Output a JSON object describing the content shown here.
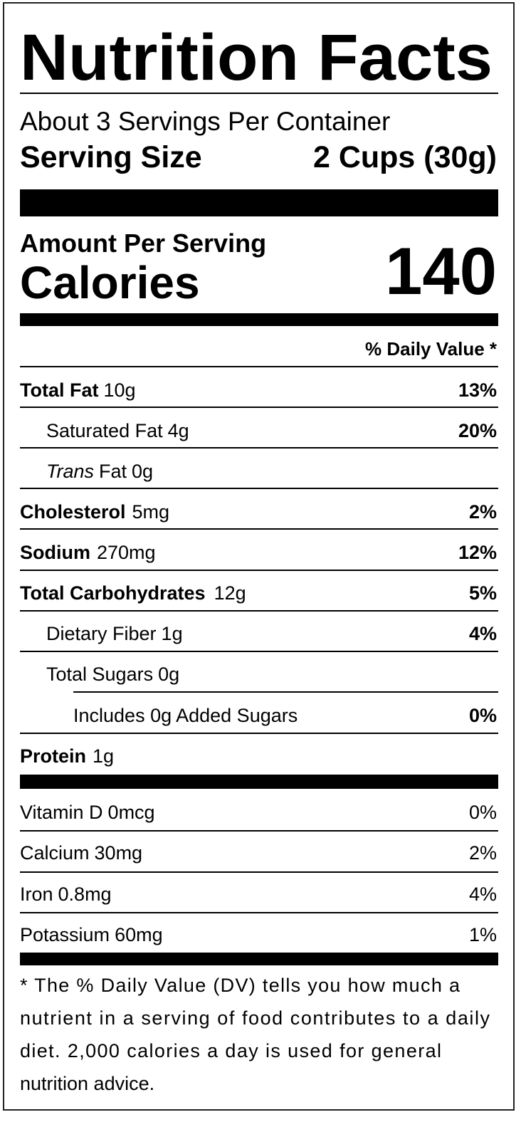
{
  "header": {
    "title": "Nutrition Facts",
    "servings": "About 3 Servings Per Container",
    "serving_size_label": "Serving Size",
    "serving_size": "2 Cups (30g)"
  },
  "calories": {
    "heading": "Amount Per Serving",
    "label": "Calories",
    "value": "140"
  },
  "daily_value_heading": "% Daily Value *",
  "nutrients": [
    {
      "name": "Total Fat",
      "amount": "10g",
      "dv": "13%"
    },
    {
      "name": "Saturated Fat",
      "amount": "4g",
      "dv": "20%"
    },
    {
      "name_italic": "Trans",
      "name": "Fat",
      "amount": "0g"
    },
    {
      "name": "Cholesterol",
      "amount": "5mg",
      "dv": "2%"
    },
    {
      "name": "Sodium",
      "amount": "270mg",
      "dv": "12%"
    },
    {
      "name": "Total Carbohydrates",
      "amount": "12g",
      "dv": "5%"
    },
    {
      "name": "Dietary Fiber",
      "amount": "1g",
      "dv": "4%"
    },
    {
      "name": "Total Sugars",
      "amount": "0g"
    },
    {
      "name": "Includes 0g Added Sugars",
      "dv": "0%"
    },
    {
      "name": "Protein",
      "amount": "1g"
    }
  ],
  "vitamins": [
    {
      "name": "Vitamin D",
      "amount": "0mcg",
      "dv": "0%"
    },
    {
      "name": "Calcium",
      "amount": "30mg",
      "dv": "2%"
    },
    {
      "name": "Iron",
      "amount": "0.8mg",
      "dv": "4%"
    },
    {
      "name": "Potassium",
      "amount": "60mg",
      "dv": "1%"
    }
  ],
  "footnote": [
    "* The % Daily Value (DV) tells you how much a",
    "nutrient in a serving of food contributes to a daily",
    "diet. 2,000 calories a day is used for general",
    "nutrition advice."
  ]
}
